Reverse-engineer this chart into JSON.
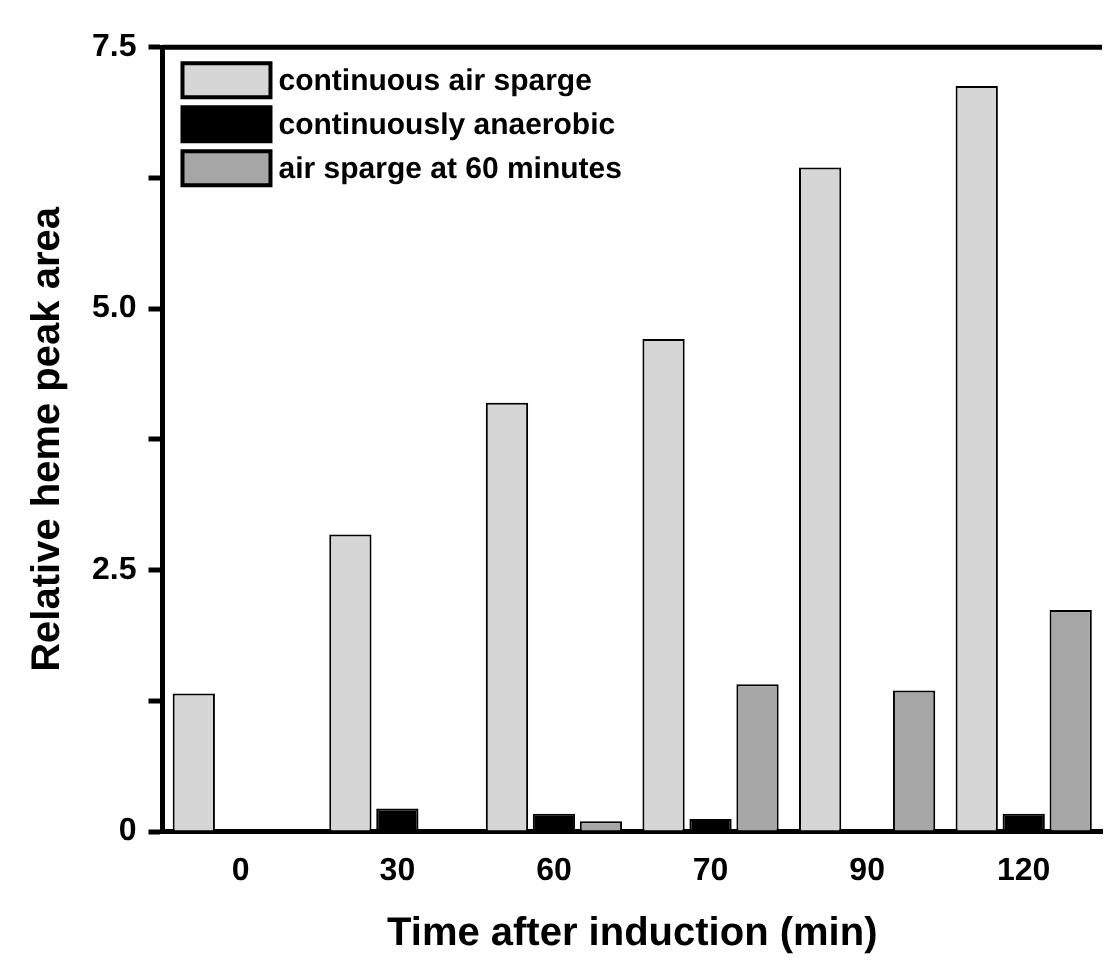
{
  "chart_data": {
    "type": "bar",
    "xlabel": "Time after induction (min)",
    "ylabel": "Relative heme peak area",
    "categories": [
      "0",
      "30",
      "60",
      "70",
      "90",
      "120"
    ],
    "series": [
      {
        "name": "continuous air sparge",
        "color": "#d6d6d6",
        "values": [
          1.32,
          2.84,
          4.1,
          4.71,
          6.35,
          7.13
        ]
      },
      {
        "name": "continuously anaerobic",
        "color": "#000000",
        "values": [
          null,
          0.22,
          0.17,
          0.12,
          null,
          0.17
        ]
      },
      {
        "name": "air sparge at 60 minutes",
        "color": "#a6a6a6",
        "values": [
          null,
          null,
          0.1,
          1.41,
          1.35,
          2.12
        ]
      }
    ],
    "ylim": [
      0,
      7.5
    ],
    "yticks": [
      0,
      {
        "value": 1.25,
        "label": null
      },
      2.5,
      {
        "value": 3.75,
        "label": null
      },
      "5.0",
      {
        "value": 6.25,
        "label": null
      },
      7.5
    ],
    "grid": false,
    "legend": "top left"
  }
}
